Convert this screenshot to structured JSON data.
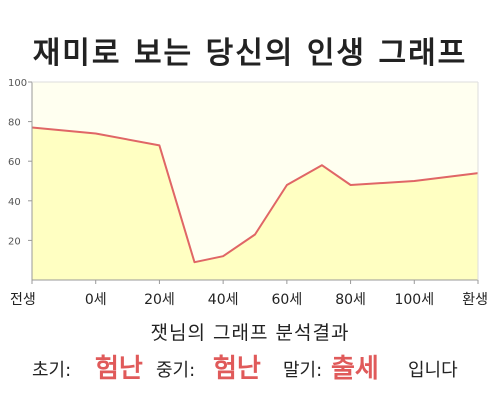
{
  "title": "재미로 보는 당신의 인생 그래프",
  "chart_data": {
    "type": "area",
    "x_labels": [
      "전생",
      "0세",
      "20세",
      "40세",
      "60세",
      "80세",
      "100세",
      "환생"
    ],
    "points": [
      {
        "x": 0,
        "y": 77
      },
      {
        "x": 1,
        "y": 74
      },
      {
        "x": 2,
        "y": 68
      },
      {
        "x": 2.55,
        "y": 9
      },
      {
        "x": 3,
        "y": 12
      },
      {
        "x": 3.5,
        "y": 23
      },
      {
        "x": 4,
        "y": 48
      },
      {
        "x": 4.55,
        "y": 58
      },
      {
        "x": 5,
        "y": 48
      },
      {
        "x": 6,
        "y": 50
      },
      {
        "x": 7,
        "y": 54
      }
    ],
    "y_ticks": [
      20,
      40,
      60,
      80,
      100
    ],
    "ylim": [
      0,
      100
    ],
    "grid": false,
    "colors": {
      "line": "#e06666",
      "fill": "#ffffc2",
      "plot_bg": "#fffff0",
      "axis": "#999999"
    }
  },
  "result": {
    "title": "잿님의 그래프 분석결과",
    "early_label": "초기:",
    "early_value": "험난",
    "middle_label": "중기:",
    "middle_value": "험난",
    "late_label": "말기:",
    "late_value": "출세",
    "suffix": "입니다"
  }
}
